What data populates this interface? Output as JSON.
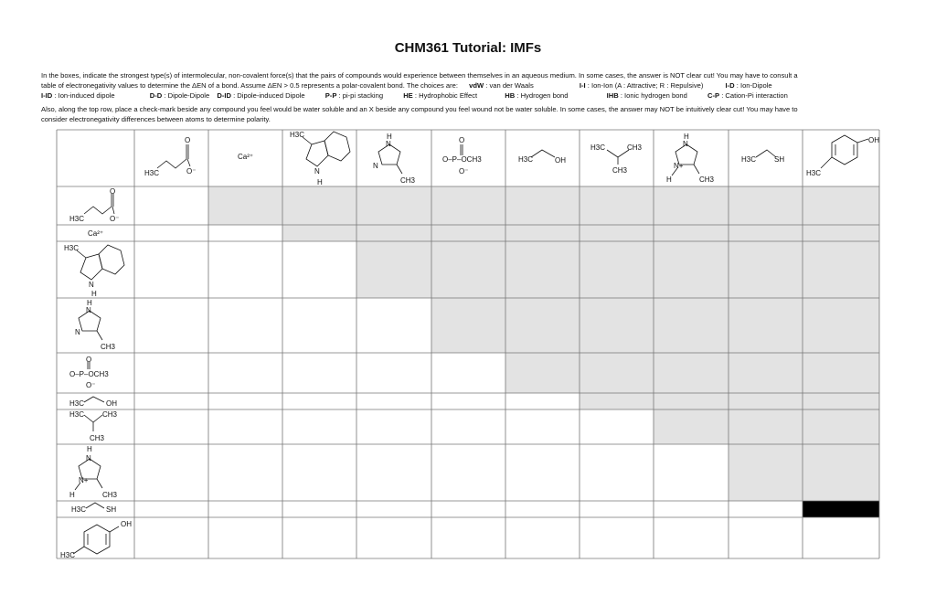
{
  "title": "CHM361 Tutorial:  IMFs",
  "instructions": {
    "line1": "In the boxes, indicate the strongest type(s) of intermolecular, non-covalent force(s) that the pairs of compounds would experience between themselves in an aqueous medium. In some cases, the answer is NOT clear cut! You may have to consult a",
    "line2_text": "table of electronegativity values to determine the ΔEN of a bond. Assume ΔEN > 0.5 represents a polar-covalent bond. The choices are:",
    "choices": [
      {
        "abbr": "vdW",
        "desc": ": van der Waals"
      },
      {
        "abbr": "I-I",
        "desc": ": Ion-Ion (A : Attractive; R : Repulsive)"
      },
      {
        "abbr": "I-D",
        "desc": ": Ion-Dipole"
      },
      {
        "abbr": "I-ID",
        "desc": ": Ion-induced dipole"
      },
      {
        "abbr": "D-D",
        "desc": ": Dipole-Dipole"
      },
      {
        "abbr": "D-ID",
        "desc": ": Dipole-induced Dipole"
      },
      {
        "abbr": "P-P",
        "desc": ": pi-pi stacking"
      },
      {
        "abbr": "HE",
        "desc": ": Hydrophobic Effect"
      },
      {
        "abbr": "HB",
        "desc": ": Hydrogen bond"
      },
      {
        "abbr": "IHB",
        "desc": ": Ionic hydrogen bond"
      },
      {
        "abbr": "C-P",
        "desc": ": Cation-Pi interaction"
      }
    ],
    "line4": "Also, along the top row, place a check-mark beside any compound you feel would be water soluble and an X beside any compound you feel wound not be water soluble. In some cases, the answer may NOT be intuitively clear cut! You may have to",
    "line5": "consider electronegativity differences between atoms to determine polarity."
  },
  "compounds": [
    {
      "id": "propanoate",
      "labels": [
        "H3C",
        "O",
        "O⁻"
      ]
    },
    {
      "id": "calcium-ion",
      "labels": [
        "Ca²⁺"
      ]
    },
    {
      "id": "skatole",
      "labels": [
        "H3C",
        "N",
        "H"
      ]
    },
    {
      "id": "methylimidazole",
      "labels": [
        "H",
        "N",
        "N",
        "CH3"
      ]
    },
    {
      "id": "methyl-phosphate",
      "labels": [
        "O",
        "O–P–OCH3",
        "O⁻"
      ]
    },
    {
      "id": "ethanol",
      "labels": [
        "H3C",
        "OH"
      ]
    },
    {
      "id": "isobutane",
      "labels": [
        "H3C",
        "CH3",
        "CH3"
      ]
    },
    {
      "id": "methylimidazolium",
      "labels": [
        "H",
        "N",
        "N+",
        "H",
        "CH3"
      ]
    },
    {
      "id": "ethanethiol",
      "labels": [
        "H3C",
        "SH"
      ]
    },
    {
      "id": "p-cresol",
      "labels": [
        "OH",
        "H3C"
      ]
    }
  ],
  "shading_color": "#e3e3e3",
  "black_cell_color": "#000000"
}
